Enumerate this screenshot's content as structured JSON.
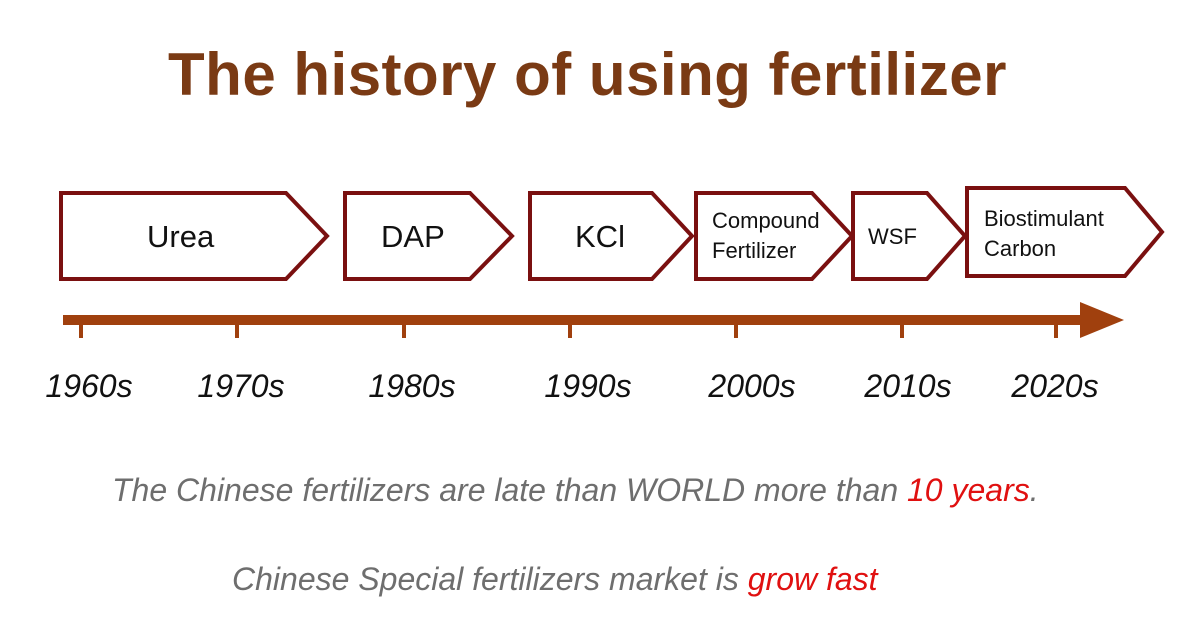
{
  "title": "The history of using fertilizer",
  "stages": [
    {
      "label": "Urea"
    },
    {
      "label": "DAP"
    },
    {
      "label": "KCl"
    },
    {
      "line1": "Compound",
      "line2": "Fertilizer"
    },
    {
      "label": "WSF"
    },
    {
      "line1": "Biostimulant",
      "line2": "Carbon"
    }
  ],
  "decades": [
    "1960s",
    "1970s",
    "1980s",
    "1990s",
    "2000s",
    "2010s",
    "2020s"
  ],
  "notes": {
    "line1_prefix": "The Chinese fertilizers are late than WORLD more than ",
    "line1_highlight": "10 years",
    "line1_suffix": ".",
    "line2_prefix": "Chinese Special fertilizers market is ",
    "line2_highlight": "grow fast"
  },
  "colors": {
    "title": "#7a3a14",
    "chevron_border": "#7a1010",
    "axis": "#a0400e",
    "note_text": "#6e6e6e",
    "highlight": "#e01010"
  }
}
